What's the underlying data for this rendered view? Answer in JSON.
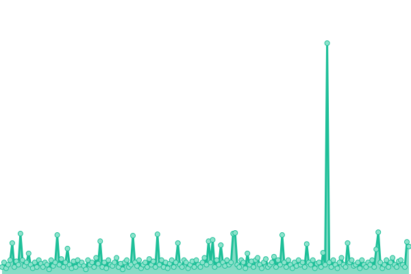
{
  "chart_data": {
    "type": "area",
    "title": "",
    "xlabel": "",
    "ylabel": "",
    "grid": false,
    "legend": "none",
    "axes_visible": false,
    "ylim": [
      0,
      100
    ],
    "colors": {
      "line": "#1dbf98",
      "fill": "#86dcc6",
      "marker_fill": "#8ee3cc",
      "marker_stroke": "#1dbf98"
    },
    "series": [
      {
        "values": [
          3,
          5,
          2.5,
          4,
          6,
          13.4,
          3,
          5.5,
          4,
          17.5,
          6,
          3.5,
          5,
          8.9,
          4,
          2.5,
          5,
          3,
          6,
          4.5,
          3,
          5,
          4,
          2,
          6,
          3.5,
          5,
          16.9,
          4,
          6.5,
          3,
          5,
          11,
          4,
          2.5,
          5.5,
          3,
          6,
          4,
          5,
          3.5,
          2,
          6,
          4,
          5,
          3,
          7,
          4.5,
          14.2,
          3,
          5,
          2.5,
          6,
          4,
          3.5,
          5,
          7,
          3,
          4.5,
          2,
          5,
          6,
          3,
          4,
          16.6,
          5,
          3.5,
          6,
          2.5,
          4,
          5,
          3,
          6.5,
          4,
          5.5,
          3,
          17.2,
          4,
          6,
          3,
          5,
          2.5,
          4.5,
          6,
          3,
          5,
          13.4,
          4,
          3,
          6,
          5,
          2.5,
          4,
          5.5,
          3,
          6,
          4,
          3,
          5,
          7,
          4,
          14.2,
          5,
          14.8,
          3,
          6,
          4,
          12.5,
          5,
          3.5,
          6,
          4,
          5,
          17.5,
          17.8,
          4,
          3,
          6,
          5,
          2.5,
          8.9,
          4,
          5.5,
          3,
          6,
          7,
          4,
          2.5,
          5,
          6.5,
          3,
          4,
          5,
          7.5,
          3,
          6,
          4,
          16.9,
          5,
          3,
          6,
          4,
          2.5,
          5,
          3.5,
          6,
          4,
          5,
          3,
          13,
          5,
          4,
          6,
          2.5,
          4.5,
          5,
          3,
          9.2,
          4,
          100,
          5,
          3,
          6,
          4,
          2.5,
          5,
          7,
          4,
          3,
          13.4,
          5,
          6,
          3.5,
          4,
          5,
          2.5,
          6,
          4,
          3,
          5,
          4,
          6,
          3,
          10.7,
          18.1,
          5,
          2.5,
          4,
          6,
          3,
          5,
          7,
          4,
          3,
          5.5,
          6,
          4,
          3,
          13.9,
          11.9
        ]
      }
    ]
  }
}
